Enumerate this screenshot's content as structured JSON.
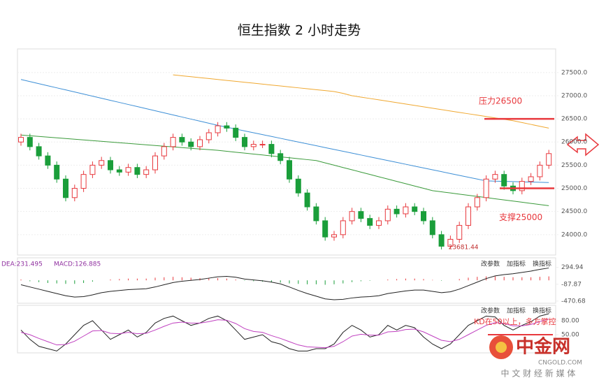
{
  "chart_data": [
    {
      "type": "candlestick",
      "title": "恒生指数 2 小时走势",
      "ylim": [
        23560,
        28010
      ],
      "yticks": [
        {
          "value": 24000,
          "label": "24000.0"
        },
        {
          "value": 24500,
          "label": "24500.0"
        },
        {
          "value": 25000,
          "label": "25000.0"
        },
        {
          "value": 25500,
          "label": "25500.0"
        },
        {
          "value": 26000,
          "label": "26000.0"
        },
        {
          "value": 26500,
          "label": "26500.0"
        },
        {
          "value": 27000,
          "label": "27000.0"
        },
        {
          "value": 27500,
          "label": "27500.0"
        }
      ],
      "up_color": "#e8383d",
      "down_color": "#1a9e3a",
      "open": [
        26000,
        26100,
        25900,
        25700,
        25500,
        25200,
        24800,
        25000,
        25300,
        25500,
        25600,
        25400,
        25350,
        25450,
        25300,
        25400,
        25700,
        25900,
        26100,
        26000,
        25900,
        26050,
        26200,
        26350,
        26300,
        26100,
        25900,
        25950,
        25950,
        25750,
        25600,
        25200,
        24900,
        24600,
        24300,
        23950,
        24000,
        24300,
        24500,
        24350,
        24200,
        24300,
        24550,
        24450,
        24600,
        24500,
        24300,
        24000,
        23750,
        23900,
        24200,
        24600,
        24800,
        25200,
        25300,
        25050,
        24950,
        25150,
        25250,
        25500
      ],
      "high": [
        26180,
        26180,
        25980,
        25780,
        25580,
        25280,
        25080,
        25380,
        25580,
        25680,
        25680,
        25480,
        25530,
        25530,
        25480,
        25780,
        25980,
        26180,
        26180,
        26080,
        26130,
        26280,
        26430,
        26430,
        26380,
        26180,
        26030,
        26030,
        26030,
        25830,
        25680,
        25280,
        24980,
        24680,
        24380,
        24080,
        24380,
        24580,
        24580,
        24430,
        24380,
        24630,
        24630,
        24680,
        24680,
        24580,
        24380,
        24080,
        23980,
        24280,
        24680,
        24880,
        25280,
        25380,
        25380,
        25130,
        25230,
        25330,
        25580,
        25830
      ],
      "low": [
        25920,
        25820,
        25620,
        25420,
        25120,
        24720,
        24720,
        24920,
        25220,
        25420,
        25320,
        25270,
        25270,
        25220,
        25220,
        25320,
        25620,
        25820,
        25920,
        25820,
        25820,
        25970,
        26120,
        26220,
        26020,
        25820,
        25820,
        25870,
        25670,
        25520,
        25120,
        24820,
        24520,
        24220,
        23870,
        23870,
        23920,
        24220,
        24270,
        24120,
        24120,
        24220,
        24370,
        24370,
        24420,
        24220,
        23920,
        23681.44,
        23700,
        23820,
        24120,
        24520,
        24720,
        25120,
        24970,
        24870,
        24870,
        25070,
        25170,
        25420
      ],
      "close": [
        26100,
        25900,
        25700,
        25500,
        25200,
        24800,
        25000,
        25300,
        25500,
        25600,
        25400,
        25350,
        25450,
        25300,
        25400,
        25700,
        25900,
        26100,
        26000,
        25900,
        26050,
        26200,
        26350,
        26300,
        26100,
        25900,
        25950,
        25950,
        25750,
        25600,
        25200,
        24900,
        24600,
        24300,
        23950,
        24000,
        24300,
        24500,
        24350,
        24200,
        24300,
        24550,
        24450,
        24600,
        24500,
        24300,
        24000,
        23750,
        23900,
        24200,
        24600,
        24800,
        25200,
        25300,
        25050,
        24950,
        25150,
        25250,
        25500,
        25750
      ],
      "lines": [
        {
          "color": "#f0a830",
          "values": [
            null,
            null,
            null,
            null,
            null,
            null,
            null,
            null,
            null,
            null,
            null,
            null,
            null,
            null,
            null,
            null,
            null,
            27450,
            27430,
            27410,
            27390,
            27370,
            27350,
            27330,
            27310,
            27290,
            27270,
            27250,
            27230,
            27210,
            27190,
            27170,
            27150,
            27130,
            27110,
            27090,
            27050,
            27000,
            26970,
            26940,
            26910,
            26880,
            26850,
            26820,
            26790,
            26760,
            26730,
            26700,
            26670,
            26640,
            26610,
            26580,
            26550,
            26520,
            26490,
            26460,
            26420,
            26380,
            26340,
            26300
          ]
        },
        {
          "color": "#3d8fd6",
          "values": [
            27350,
            27305,
            27260,
            27215,
            27170,
            27125,
            27080,
            27035,
            26990,
            26945,
            26900,
            26855,
            26810,
            26765,
            26720,
            26675,
            26630,
            26585,
            26540,
            26495,
            26450,
            26405,
            26360,
            26320,
            26280,
            26240,
            26200,
            26160,
            26120,
            26080,
            26040,
            26000,
            25960,
            25920,
            25880,
            25840,
            25800,
            25760,
            25720,
            25680,
            25640,
            25600,
            25560,
            25520,
            25480,
            25440,
            25400,
            25360,
            25320,
            25280,
            25240,
            25200,
            25160,
            25155,
            25150,
            25145,
            25140,
            25135,
            25130,
            25125
          ]
        },
        {
          "color": "#3a9a3a",
          "values": [
            26150,
            26135,
            26120,
            26105,
            26090,
            26075,
            26060,
            26045,
            26030,
            26015,
            26000,
            25985,
            25970,
            25955,
            25940,
            25925,
            25910,
            25895,
            25880,
            25865,
            25850,
            25835,
            25820,
            25800,
            25780,
            25760,
            25740,
            25720,
            25700,
            25680,
            25660,
            25640,
            25620,
            25600,
            25550,
            25500,
            25450,
            25400,
            25350,
            25300,
            25250,
            25200,
            25150,
            25100,
            25050,
            25000,
            24950,
            24925,
            24900,
            24875,
            24850,
            24825,
            24800,
            24775,
            24750,
            24725,
            24700,
            24675,
            24650,
            24625
          ]
        }
      ],
      "annotations": [
        {
          "text": "压力26500",
          "value": 26500
        },
        {
          "text": "支撑25000",
          "value": 25000
        }
      ]
    },
    {
      "type": "macd",
      "indicators": [
        "DEA:231.495",
        "MACD:126.885"
      ],
      "buttons": [
        "改参数",
        "加指标",
        "换指标"
      ],
      "ylim": [
        -520,
        511
      ],
      "yticks": [
        294.94,
        -87.87,
        -470.68
      ],
      "line_color": "#222",
      "bar_up": "#e8383d",
      "bar_down": "#1a9e3a",
      "line": [
        -100,
        -150,
        -200,
        -250,
        -300,
        -350,
        -380,
        -370,
        -330,
        -280,
        -250,
        -230,
        -210,
        -200,
        -190,
        -150,
        -100,
        -50,
        -20,
        0,
        20,
        50,
        80,
        90,
        70,
        30,
        10,
        -10,
        -40,
        -80,
        -150,
        -230,
        -300,
        -360,
        -420,
        -440,
        -430,
        -400,
        -380,
        -370,
        -350,
        -300,
        -270,
        -240,
        -220,
        -220,
        -250,
        -280,
        -260,
        -200,
        -120,
        -40,
        40,
        100,
        130,
        150,
        180,
        210,
        250,
        280
      ],
      "bars": [
        20,
        -20,
        -40,
        -60,
        -70,
        -80,
        -80,
        -60,
        -30,
        0,
        20,
        30,
        40,
        40,
        40,
        60,
        70,
        80,
        70,
        60,
        50,
        50,
        50,
        40,
        20,
        -10,
        -20,
        -30,
        -40,
        -50,
        -70,
        -80,
        -90,
        -90,
        -100,
        -90,
        -70,
        -40,
        -20,
        -10,
        0,
        20,
        30,
        40,
        40,
        30,
        10,
        -10,
        0,
        30,
        60,
        80,
        90,
        90,
        80,
        70,
        70,
        70,
        80,
        90
      ]
    },
    {
      "type": "kd",
      "buttons": [
        "改参数",
        "加指标",
        "换指标"
      ],
      "ylim": [
        11,
        113
      ],
      "yticks": [
        {
          "value": 80,
          "label": "80.00"
        },
        {
          "value": 50,
          "label": "50.00"
        }
      ],
      "series": [
        {
          "color": "#222",
          "values": [
            60,
            40,
            25,
            20,
            15,
            30,
            50,
            70,
            80,
            60,
            40,
            50,
            60,
            45,
            55,
            75,
            85,
            90,
            80,
            70,
            75,
            85,
            90,
            80,
            60,
            40,
            45,
            50,
            35,
            30,
            20,
            15,
            15,
            20,
            20,
            30,
            55,
            70,
            60,
            45,
            50,
            70,
            60,
            70,
            65,
            45,
            30,
            20,
            30,
            50,
            70,
            80,
            90,
            88,
            70,
            60,
            70,
            78,
            90,
            95
          ]
        },
        {
          "color": "#c040c0",
          "values": [
            55,
            50,
            42,
            35,
            28,
            29,
            36,
            47,
            58,
            59,
            53,
            52,
            55,
            52,
            53,
            60,
            68,
            75,
            77,
            75,
            75,
            78,
            82,
            81,
            74,
            63,
            57,
            55,
            48,
            42,
            35,
            28,
            24,
            23,
            22,
            25,
            35,
            47,
            51,
            49,
            49,
            56,
            57,
            61,
            62,
            56,
            47,
            38,
            35,
            40,
            50,
            60,
            70,
            76,
            74,
            69,
            69,
            72,
            78,
            84
          ]
        }
      ],
      "annotations": [
        {
          "text": "KD在50以上，多方掌控",
          "value": 50
        }
      ]
    }
  ],
  "logo": {
    "name": "中金网",
    "domain": "CNGOLD.COM",
    "slogan": "中 文 财 经 新 媒 体"
  }
}
